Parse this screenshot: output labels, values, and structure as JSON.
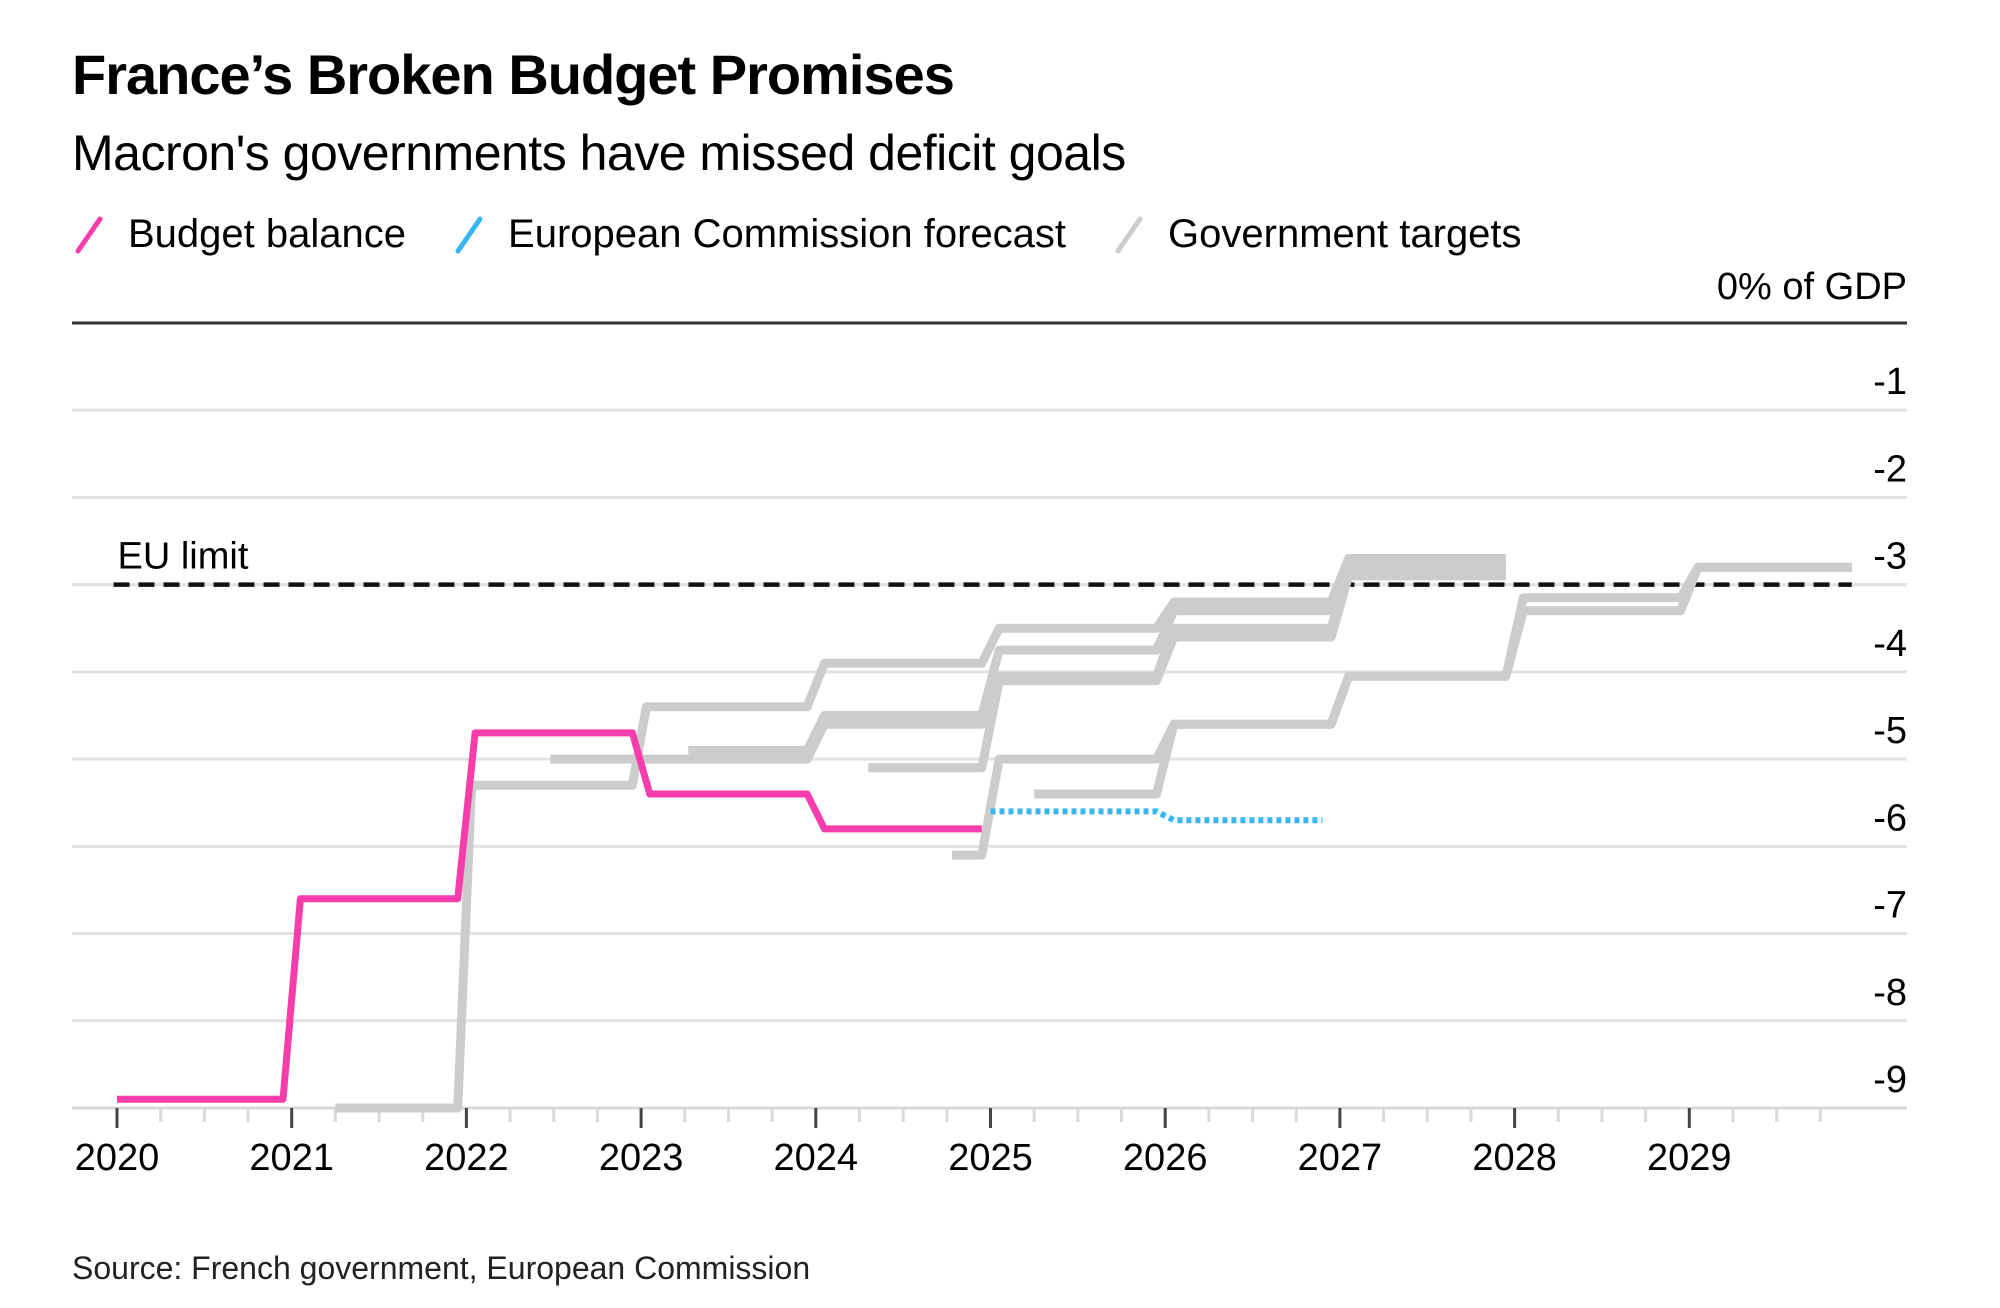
{
  "header": {
    "title": "France’s Broken Budget Promises",
    "subtitle": "Macron's governments have missed deficit goals"
  },
  "legend": [
    {
      "label": "Budget balance",
      "color": "#f73dab"
    },
    {
      "label": "European Commission forecast",
      "color": "#38b6f2"
    },
    {
      "label": "Government targets",
      "color": "#cccccc"
    }
  ],
  "source": "Source: French government, European Commission",
  "chart_data": {
    "type": "line",
    "title": "France’s Broken Budget Promises",
    "subtitle": "Macron's governments have missed deficit goals",
    "ylabel": "% of GDP",
    "unit_label": "0% of GDP",
    "xlim": [
      2019.75,
      2030.05
    ],
    "ylim": [
      -9,
      0
    ],
    "x_ticks": [
      "2020",
      "2021",
      "2022",
      "2023",
      "2024",
      "2025",
      "2026",
      "2027",
      "2028",
      "2029"
    ],
    "y_ticks": [
      "-1",
      "-2",
      "-3",
      "-4",
      "-5",
      "-6",
      "-7",
      "-8",
      "-9"
    ],
    "grid": true,
    "legend_position": "top-left",
    "annotations": [
      {
        "label": "EU limit",
        "y": -3,
        "style": "dashed",
        "x_start": 2019.98,
        "x_end": 2029.93
      }
    ],
    "series": [
      {
        "name": "Budget balance",
        "style": "solid",
        "color": "#f73dab",
        "steps": [
          {
            "from": 2020.0,
            "to": 2020.95,
            "value": -8.9
          },
          {
            "from": 2021.05,
            "to": 2021.95,
            "value": -6.6
          },
          {
            "from": 2022.05,
            "to": 2022.95,
            "value": -4.7
          },
          {
            "from": 2023.05,
            "to": 2023.95,
            "value": -5.4
          },
          {
            "from": 2024.05,
            "to": 2024.95,
            "value": -5.8
          }
        ]
      },
      {
        "name": "European Commission forecast",
        "style": "dotted",
        "color": "#38b6f2",
        "steps": [
          {
            "from": 2025.0,
            "to": 2025.95,
            "value": -5.6
          },
          {
            "from": 2026.05,
            "to": 2026.9,
            "value": -5.7
          }
        ]
      },
      {
        "name": "Government targets",
        "style": "solid",
        "color": "#cccccc",
        "paths": [
          [
            {
              "from": 2021.25,
              "to": 2021.95,
              "value": -9.0
            },
            {
              "from": 2022.03,
              "to": 2022.95,
              "value": -5.3
            },
            {
              "from": 2023.03,
              "to": 2023.95,
              "value": -4.4
            },
            {
              "from": 2024.05,
              "to": 2024.95,
              "value": -3.9
            },
            {
              "from": 2025.05,
              "to": 2025.95,
              "value": -3.5
            },
            {
              "from": 2026.05,
              "to": 2026.95,
              "value": -3.2
            },
            {
              "from": 2027.05,
              "to": 2027.95,
              "value": -2.7
            }
          ],
          [
            {
              "from": 2022.48,
              "to": 2022.95,
              "value": -5.0
            },
            {
              "from": 2023.03,
              "to": 2023.95,
              "value": -5.0
            },
            {
              "from": 2024.05,
              "to": 2024.95,
              "value": -4.6
            },
            {
              "from": 2025.05,
              "to": 2025.95,
              "value": -4.05
            },
            {
              "from": 2026.05,
              "to": 2026.95,
              "value": -3.5
            },
            {
              "from": 2027.05,
              "to": 2027.95,
              "value": -2.8
            }
          ],
          [
            {
              "from": 2023.27,
              "to": 2023.95,
              "value": -4.9
            },
            {
              "from": 2024.05,
              "to": 2024.95,
              "value": -4.5
            },
            {
              "from": 2025.05,
              "to": 2025.95,
              "value": -3.75
            },
            {
              "from": 2026.05,
              "to": 2026.95,
              "value": -3.3
            },
            {
              "from": 2027.05,
              "to": 2027.95,
              "value": -2.7
            }
          ],
          [
            {
              "from": 2024.3,
              "to": 2024.95,
              "value": -5.1
            },
            {
              "from": 2025.05,
              "to": 2025.95,
              "value": -4.1
            },
            {
              "from": 2026.05,
              "to": 2026.95,
              "value": -3.6
            },
            {
              "from": 2027.05,
              "to": 2027.95,
              "value": -2.9
            }
          ],
          [
            {
              "from": 2024.78,
              "to": 2024.95,
              "value": -6.1
            },
            {
              "from": 2025.05,
              "to": 2025.95,
              "value": -5.0
            },
            {
              "from": 2026.05,
              "to": 2026.95,
              "value": -4.6
            },
            {
              "from": 2027.05,
              "to": 2027.95,
              "value": -4.05
            },
            {
              "from": 2028.05,
              "to": 2028.95,
              "value": -3.3
            },
            {
              "from": 2029.05,
              "to": 2029.93,
              "value": -2.8
            }
          ],
          [
            {
              "from": 2025.25,
              "to": 2025.95,
              "value": -5.4
            },
            {
              "from": 2026.05,
              "to": 2026.95,
              "value": -4.6
            },
            {
              "from": 2027.05,
              "to": 2027.95,
              "value": -4.05
            },
            {
              "from": 2028.05,
              "to": 2028.95,
              "value": -3.15
            },
            {
              "from": 2029.05,
              "to": 2029.93,
              "value": -2.8
            }
          ]
        ]
      }
    ]
  }
}
